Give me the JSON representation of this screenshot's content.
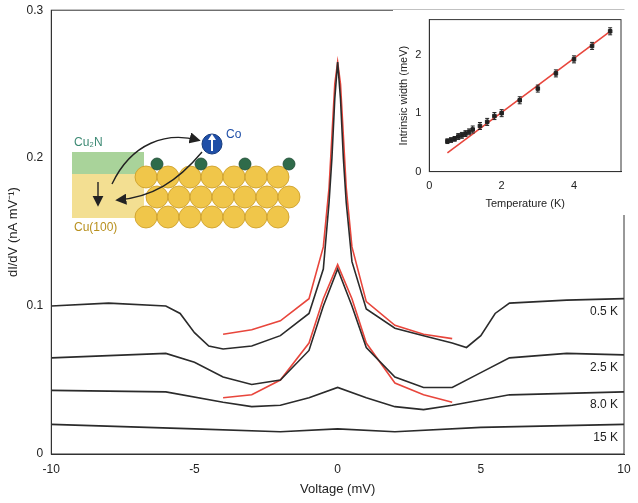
{
  "chart_data": [
    {
      "type": "line",
      "xlabel": "Voltage (mV)",
      "ylabel": "dI/dV (nA mV⁻¹)",
      "xlim": [
        -10,
        10
      ],
      "xticks": [
        -10,
        -5,
        0,
        5,
        10
      ],
      "ylim": [
        0,
        0.3
      ],
      "yticks": [
        0,
        0.1,
        0.2,
        0.3
      ],
      "grid": false,
      "series": [
        {
          "name": "0.5 K",
          "color": "#2b2b2b",
          "line_style": "solid",
          "x": [
            -10,
            -8,
            -6,
            -5.5,
            -5,
            -4.5,
            -4,
            -3,
            -2,
            -1,
            -0.5,
            -0.3,
            -0.2,
            -0.1,
            0,
            0.1,
            0.2,
            0.3,
            0.5,
            1,
            2,
            3,
            4,
            4.5,
            5,
            5.5,
            6,
            8,
            10
          ],
          "values": [
            0.1,
            0.102,
            0.1,
            0.095,
            0.082,
            0.073,
            0.071,
            0.073,
            0.08,
            0.095,
            0.125,
            0.17,
            0.2,
            0.24,
            0.265,
            0.24,
            0.2,
            0.17,
            0.13,
            0.098,
            0.085,
            0.08,
            0.075,
            0.072,
            0.08,
            0.095,
            0.102,
            0.104,
            0.105
          ]
        },
        {
          "name": "2.5 K",
          "color": "#2b2b2b",
          "line_style": "solid",
          "x": [
            -10,
            -6,
            -5,
            -4,
            -3,
            -2,
            -1,
            -0.5,
            0,
            0.5,
            1,
            2,
            3,
            4,
            5,
            6,
            8,
            10
          ],
          "values": [
            0.065,
            0.068,
            0.062,
            0.052,
            0.047,
            0.05,
            0.07,
            0.1,
            0.125,
            0.1,
            0.072,
            0.052,
            0.045,
            0.045,
            0.055,
            0.065,
            0.068,
            0.067
          ]
        },
        {
          "name": "8.0 K",
          "color": "#2b2b2b",
          "line_style": "solid",
          "x": [
            -10,
            -6,
            -4,
            -3,
            -2,
            -1,
            0,
            1,
            2,
            3,
            4,
            6,
            10
          ],
          "values": [
            0.043,
            0.042,
            0.035,
            0.032,
            0.033,
            0.038,
            0.045,
            0.038,
            0.032,
            0.03,
            0.033,
            0.04,
            0.042
          ]
        },
        {
          "name": "15 K",
          "color": "#2b2b2b",
          "line_style": "solid",
          "x": [
            -10,
            -5,
            -2,
            0,
            2,
            5,
            10
          ],
          "values": [
            0.02,
            0.017,
            0.015,
            0.017,
            0.015,
            0.018,
            0.02
          ]
        },
        {
          "color": "#e8463c",
          "line_style": "solid",
          "x": [
            -4,
            -3,
            -2,
            -1,
            -0.5,
            -0.3,
            -0.1,
            0,
            0.1,
            0.3,
            0.5,
            1,
            2,
            3,
            4
          ],
          "values": [
            0.081,
            0.084,
            0.09,
            0.105,
            0.14,
            0.18,
            0.25,
            0.265,
            0.25,
            0.18,
            0.14,
            0.103,
            0.087,
            0.081,
            0.078
          ]
        },
        {
          "color": "#e8463c",
          "line_style": "solid",
          "x": [
            -4,
            -3,
            -2,
            -1,
            -0.5,
            0,
            0.5,
            1,
            2,
            3,
            4
          ],
          "values": [
            0.038,
            0.04,
            0.05,
            0.075,
            0.105,
            0.128,
            0.105,
            0.075,
            0.048,
            0.04,
            0.035
          ]
        }
      ]
    },
    {
      "type": "scatter",
      "xlabel": "Temperature (K)",
      "ylabel": "Intrinsic width (meV)",
      "xlim": [
        0,
        5.3
      ],
      "xticks": [
        0,
        2,
        4
      ],
      "ylim": [
        0,
        2.6
      ],
      "yticks": [
        0,
        1,
        2
      ],
      "grid": false,
      "series": [
        {
          "type": "scatter",
          "marker": "square",
          "color": "#222222",
          "x": [
            0.5,
            0.6,
            0.7,
            0.8,
            0.9,
            1.0,
            1.1,
            1.2,
            1.4,
            1.6,
            1.8,
            2.0,
            2.5,
            3.0,
            3.5,
            4.0,
            4.5,
            5.0
          ],
          "values": [
            0.52,
            0.54,
            0.56,
            0.6,
            0.62,
            0.65,
            0.68,
            0.72,
            0.78,
            0.85,
            0.95,
            1.0,
            1.22,
            1.42,
            1.68,
            1.92,
            2.15,
            2.4
          ],
          "errors": [
            0.04,
            0.04,
            0.04,
            0.05,
            0.05,
            0.05,
            0.05,
            0.06,
            0.06,
            0.06,
            0.06,
            0.06,
            0.06,
            0.06,
            0.06,
            0.06,
            0.06,
            0.06
          ]
        },
        {
          "type": "line",
          "color": "#e8463c",
          "line_style": "solid",
          "x": [
            0.5,
            5.0
          ],
          "values": [
            0.32,
            2.4
          ]
        }
      ]
    }
  ],
  "diagram": {
    "film": "Cu₂N",
    "adatom": "Co",
    "substrate": "Cu(100)"
  }
}
